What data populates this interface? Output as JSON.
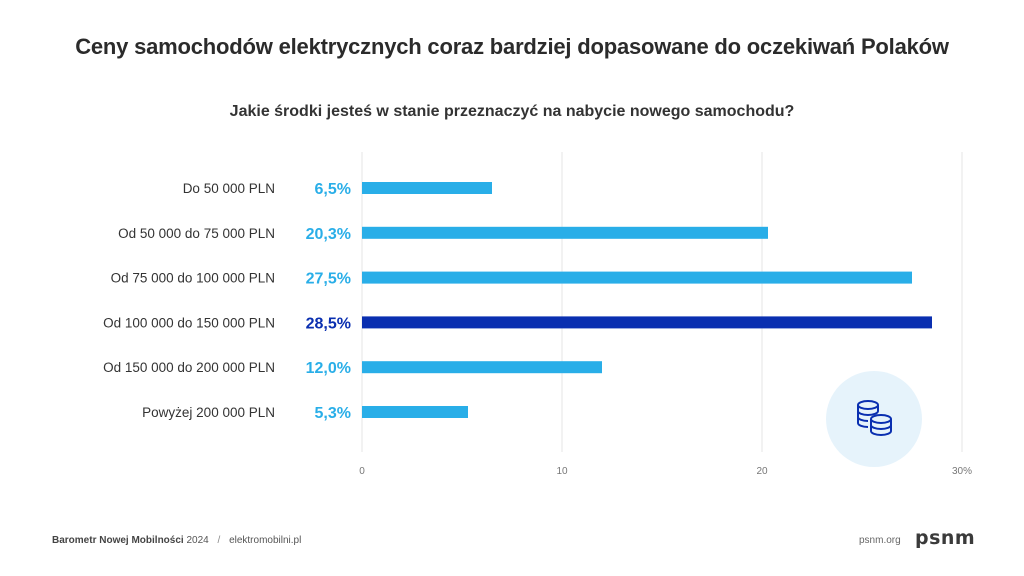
{
  "header": {
    "title": "Ceny samochodów elektrycznych coraz bardziej dopasowane do oczekiwań Polaków",
    "subtitle": "Jakie środki jesteś w stanie przeznaczyć na nabycie nowego samochodu?"
  },
  "chart_data": {
    "type": "bar",
    "orientation": "horizontal",
    "categories": [
      "Do 50 000 PLN",
      "Od 50 000 do 75 000 PLN",
      "Od 75 000 do 100 000 PLN",
      "Od 100 000 do 150 000 PLN",
      "Od 150 000 do 200 000 PLN",
      "Powyżej 200 000 PLN"
    ],
    "values": [
      6.5,
      20.3,
      27.5,
      28.5,
      12.0,
      5.3
    ],
    "value_labels": [
      "6,5%",
      "20,3%",
      "27,5%",
      "28,5%",
      "12,0%",
      "5,3%"
    ],
    "highlight_index": 3,
    "xlim": [
      0,
      30
    ],
    "x_ticks": [
      0,
      10,
      20,
      30
    ],
    "x_tick_labels": [
      "0",
      "10",
      "20",
      "30%"
    ],
    "grid": true,
    "colors": {
      "bar": "#29aee8",
      "highlight": "#0a2fb0",
      "label": "#29aee8",
      "label_highlight": "#0a2fb0",
      "grid": "#e6e6e6"
    }
  },
  "footer": {
    "brand": "Barometr Nowej Mobilności",
    "year": "2024",
    "separator": "/",
    "source": "elektromobilni.pl",
    "site": "psnm.org",
    "logo": "psnm"
  },
  "icons": {
    "badge": "coins-stack-icon"
  }
}
